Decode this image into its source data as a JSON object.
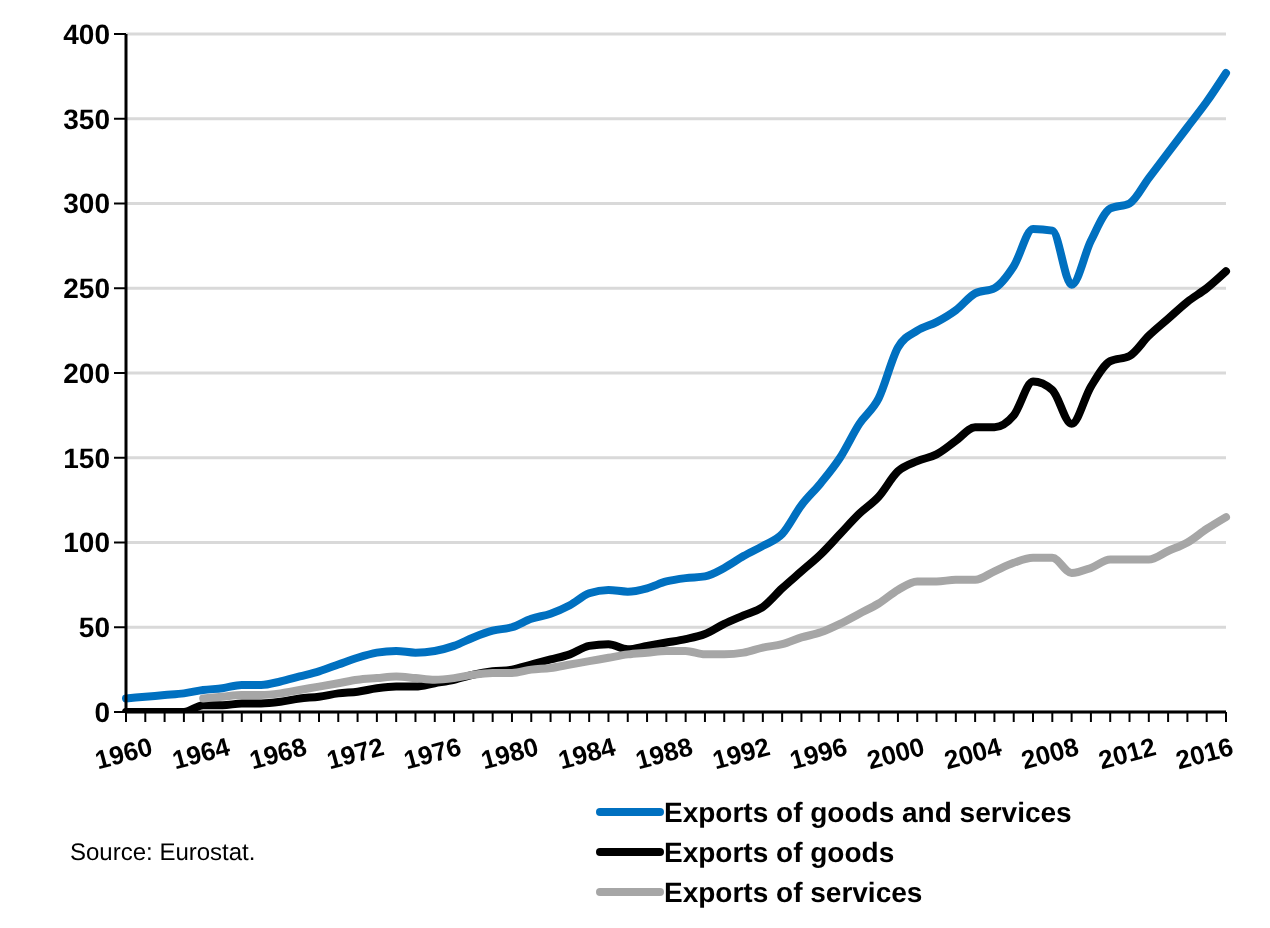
{
  "chart_data": {
    "type": "line",
    "categories": [
      "1960",
      null,
      null,
      null,
      "1964",
      null,
      null,
      null,
      "1968",
      null,
      null,
      null,
      "1972",
      null,
      null,
      null,
      "1976",
      null,
      null,
      null,
      "1980",
      null,
      null,
      null,
      "1984",
      null,
      null,
      null,
      "1988",
      null,
      null,
      null,
      "1992",
      null,
      null,
      null,
      "1996",
      null,
      null,
      null,
      "2000",
      null,
      null,
      null,
      "2004",
      null,
      null,
      null,
      "2008",
      null,
      null,
      null,
      "2012",
      null,
      null,
      null,
      "2016",
      null
    ],
    "series": [
      {
        "name": "Exports of goods and services",
        "color": "#0070c0",
        "values": [
          8,
          9,
          10,
          11,
          13,
          14,
          16,
          16,
          18,
          21,
          24,
          28,
          32,
          35,
          36,
          35,
          36,
          39,
          44,
          48,
          50,
          55,
          58,
          63,
          70,
          72,
          71,
          73,
          77,
          79,
          80,
          85,
          92,
          98,
          105,
          122,
          135,
          150,
          170,
          185,
          215,
          225,
          230,
          237,
          247,
          250,
          263,
          285,
          284,
          252,
          278,
          297,
          300,
          315,
          330,
          345,
          360,
          377
        ]
      },
      {
        "name": "Exports of goods",
        "color": "#000000",
        "values": [
          0,
          0,
          0,
          0,
          4,
          4,
          5,
          5,
          6,
          8,
          9,
          11,
          12,
          14,
          15,
          15,
          17,
          19,
          22,
          24,
          25,
          28,
          31,
          34,
          39,
          40,
          37,
          39,
          41,
          43,
          46,
          52,
          57,
          62,
          73,
          83,
          93,
          105,
          117,
          127,
          142,
          148,
          152,
          160,
          168,
          168,
          175,
          195,
          190,
          170,
          192,
          207,
          210,
          222,
          232,
          242,
          250,
          260
        ]
      },
      {
        "name": "Exports of services",
        "color": "#a6a6a6",
        "values": [
          null,
          null,
          null,
          null,
          8,
          9,
          10,
          10,
          11,
          13,
          15,
          17,
          19,
          20,
          21,
          20,
          19,
          20,
          22,
          23,
          23,
          25,
          26,
          28,
          30,
          32,
          34,
          35,
          36,
          36,
          34,
          34,
          35,
          38,
          40,
          44,
          47,
          52,
          58,
          64,
          72,
          77,
          77,
          78,
          78,
          83,
          88,
          91,
          91,
          82,
          85,
          90,
          90,
          90,
          95,
          100,
          108,
          115
        ]
      }
    ],
    "ylim": [
      0,
      400
    ],
    "yticks": [
      0,
      50,
      100,
      150,
      200,
      250,
      300,
      350,
      400
    ],
    "grid": "y",
    "legend": "bottom right",
    "marker": "none",
    "line_style": "solid",
    "annotations": [
      "Source: Eurostat."
    ]
  }
}
